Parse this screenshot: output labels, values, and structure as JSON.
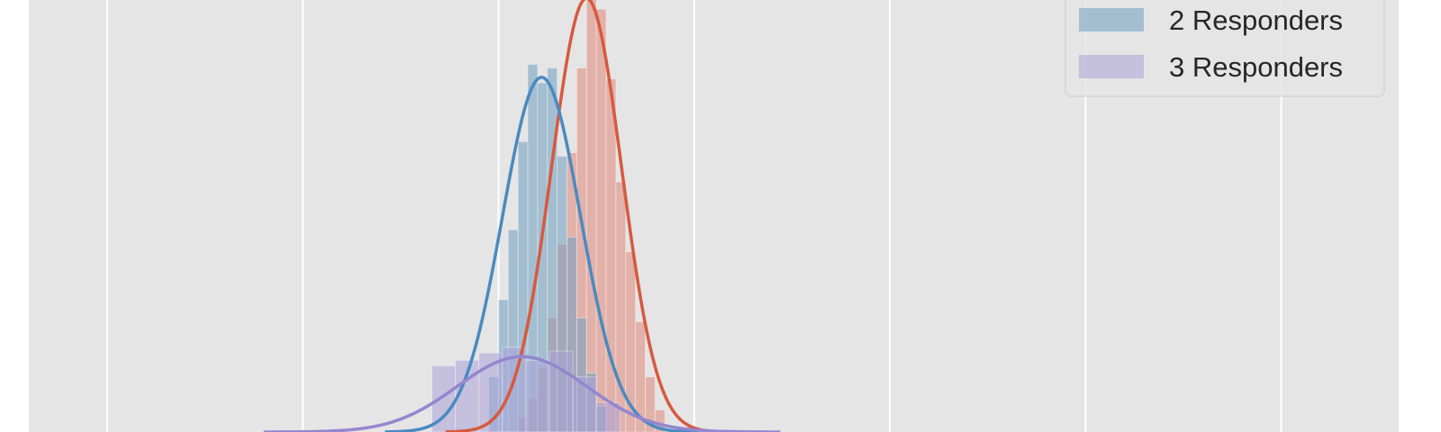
{
  "chart_data": {
    "type": "histogram",
    "title": "",
    "xlabel": "",
    "ylabel": "",
    "xlim": [
      0.0,
      7.0
    ],
    "ylim": [
      0.0,
      2.35
    ],
    "grid": true,
    "gridlines_x": [
      0.4,
      1.4,
      2.4,
      3.4,
      4.4,
      5.4,
      6.4
    ],
    "legend": {
      "placement": "top-right",
      "entries": [
        {
          "label": "2 Responders",
          "color": "#6f9fc1"
        },
        {
          "label": "3 Responders",
          "color": "#a9a2d8"
        }
      ]
    },
    "colors": {
      "background": "#e5e5e5",
      "grid": "#ffffff"
    },
    "series": [
      {
        "bin_width": 0.05,
        "color": "#e0877a",
        "kde_color": "#d65a3f",
        "kde_mean": 2.85,
        "kde_sd": 0.18,
        "kde_peak": 2.36,
        "bins": [
          {
            "x": 2.5,
            "v": 0.08
          },
          {
            "x": 2.55,
            "v": 0.18
          },
          {
            "x": 2.6,
            "v": 0.35
          },
          {
            "x": 2.65,
            "v": 0.62
          },
          {
            "x": 2.7,
            "v": 1.02
          },
          {
            "x": 2.75,
            "v": 1.52
          },
          {
            "x": 2.8,
            "v": 1.98
          },
          {
            "x": 2.85,
            "v": 2.36
          },
          {
            "x": 2.9,
            "v": 2.3
          },
          {
            "x": 2.95,
            "v": 1.92
          },
          {
            "x": 3.0,
            "v": 1.36
          },
          {
            "x": 3.05,
            "v": 0.98
          },
          {
            "x": 3.1,
            "v": 0.6
          },
          {
            "x": 3.15,
            "v": 0.3
          },
          {
            "x": 3.2,
            "v": 0.12
          }
        ]
      },
      {
        "name": "2 Responders",
        "bin_width": 0.05,
        "color": "#6f9fc1",
        "kde_color": "#4a8ac1",
        "kde_mean": 2.62,
        "kde_sd": 0.2,
        "kde_peak": 1.93,
        "bins": [
          {
            "x": 2.35,
            "v": 0.3
          },
          {
            "x": 2.4,
            "v": 0.72
          },
          {
            "x": 2.45,
            "v": 1.1
          },
          {
            "x": 2.5,
            "v": 1.58
          },
          {
            "x": 2.55,
            "v": 2.0
          },
          {
            "x": 2.6,
            "v": 1.9
          },
          {
            "x": 2.65,
            "v": 1.98
          },
          {
            "x": 2.7,
            "v": 1.5
          },
          {
            "x": 2.75,
            "v": 1.06
          },
          {
            "x": 2.8,
            "v": 0.62
          },
          {
            "x": 2.85,
            "v": 0.32
          },
          {
            "x": 2.9,
            "v": 0.14
          }
        ]
      },
      {
        "name": "3 Responders",
        "bin_width": 0.12,
        "color": "#a9a2d8",
        "kde_color": "#9486cf",
        "kde_mean": 2.52,
        "kde_sd": 0.33,
        "kde_peak": 0.41,
        "bins": [
          {
            "x": 2.06,
            "v": 0.36
          },
          {
            "x": 2.18,
            "v": 0.39
          },
          {
            "x": 2.3,
            "v": 0.43
          },
          {
            "x": 2.42,
            "v": 0.46
          },
          {
            "x": 2.54,
            "v": 0.39
          },
          {
            "x": 2.66,
            "v": 0.44
          },
          {
            "x": 2.78,
            "v": 0.3
          },
          {
            "x": 2.9,
            "v": 0.16
          }
        ]
      }
    ]
  }
}
